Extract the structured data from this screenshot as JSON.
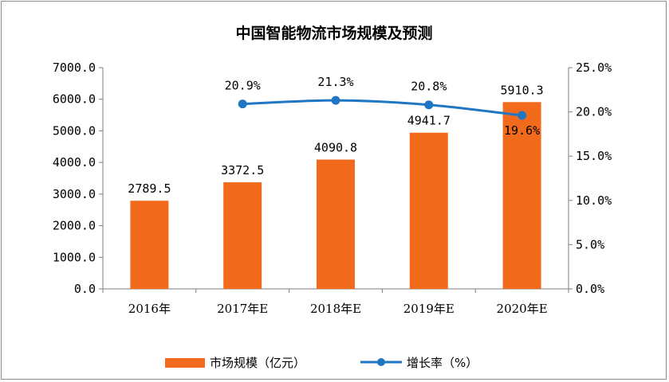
{
  "chart_data": {
    "type": "bar",
    "title": "中国智能物流市场规模及预测",
    "categories": [
      "2016年",
      "2017年E",
      "2018年E",
      "2019年E",
      "2020年E"
    ],
    "series": [
      {
        "name": "市场规模（亿元）",
        "type": "bar",
        "axis": "left",
        "color": "#f26b1d",
        "values": [
          2789.5,
          3372.5,
          4090.8,
          4941.7,
          5910.3
        ],
        "labels": [
          "2789.5",
          "3372.5",
          "4090.8",
          "4941.7",
          "5910.3"
        ]
      },
      {
        "name": "增长率（%）",
        "type": "line",
        "axis": "right",
        "color": "#1f77c4",
        "values": [
          null,
          20.9,
          21.3,
          20.8,
          19.6
        ],
        "labels": [
          "",
          "20.9%",
          "21.3%",
          "20.8%",
          "19.6%"
        ]
      }
    ],
    "y_left": {
      "ylim": [
        0,
        7000
      ],
      "ticks": [
        0,
        1000,
        2000,
        3000,
        4000,
        5000,
        6000,
        7000
      ],
      "tick_labels": [
        "0.0",
        "1000.0",
        "2000.0",
        "3000.0",
        "4000.0",
        "5000.0",
        "6000.0",
        "7000.0"
      ]
    },
    "y_right": {
      "ylim": [
        0,
        25
      ],
      "ticks": [
        0,
        5,
        10,
        15,
        20,
        25
      ],
      "tick_labels": [
        "0.0%",
        "5.0%",
        "10.0%",
        "15.0%",
        "20.0%",
        "25.0%"
      ]
    },
    "grid": false,
    "legend_position": "bottom"
  }
}
